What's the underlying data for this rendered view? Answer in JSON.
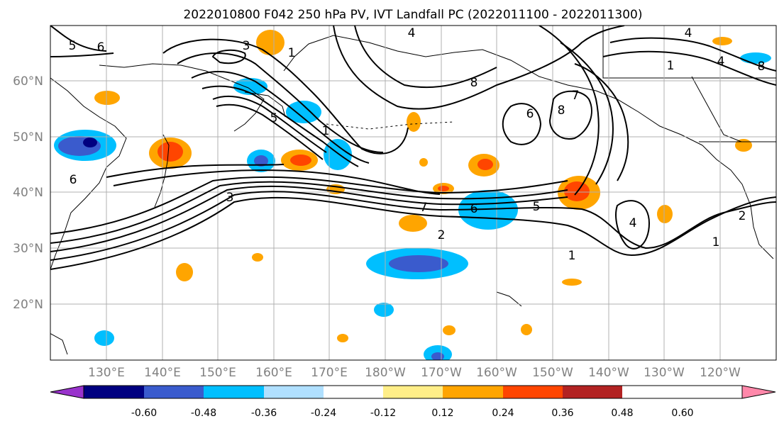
{
  "title": "2022010800 F042 250 hPa PV, IVT Landfall PC (2022011100 - 2022011300)",
  "map": {
    "lat_labels": [
      "60°N",
      "50°N",
      "40°N",
      "30°N",
      "20°N"
    ],
    "lon_labels": [
      "130°E",
      "140°E",
      "150°E",
      "160°E",
      "170°E",
      "180°W",
      "170°W",
      "160°W",
      "150°W",
      "140°W",
      "130°W",
      "120°W"
    ],
    "contour_labels": [
      "5",
      "6",
      "3",
      "1",
      "5",
      "1",
      "4",
      "8",
      "6",
      "8",
      "7",
      "4",
      "1",
      "4",
      "8",
      "6",
      "3",
      "7",
      "6",
      "5",
      "2",
      "1",
      "4",
      "2",
      "1"
    ]
  },
  "colorbar": {
    "colors": [
      "#9933cc",
      "#000080",
      "#3a5bcd",
      "#00bfff",
      "#b0e0ff",
      "#ffffff",
      "#ffee88",
      "#ffa500",
      "#ff4500",
      "#b22222",
      "#ff88aa"
    ],
    "tick_labels": [
      "-0.60",
      "-0.48",
      "-0.36",
      "-0.24",
      "-0.12",
      "0.12",
      "0.24",
      "0.36",
      "0.48",
      "0.60"
    ]
  }
}
